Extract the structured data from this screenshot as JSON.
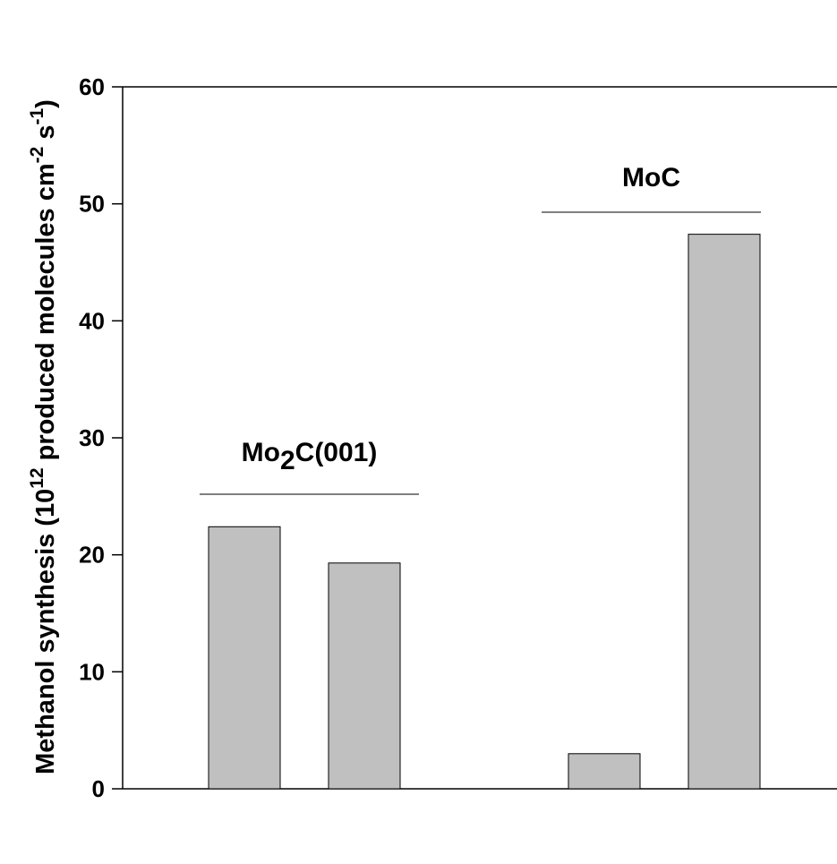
{
  "chart_data": {
    "type": "bar",
    "ylabel": {
      "prefix": "Methanol synthesis (10",
      "exp1": "12",
      "middle": " produced molecules cm",
      "exp2": "-2",
      "middle2": " s",
      "exp3": "-1",
      "suffix": ")"
    },
    "ylim": [
      0,
      60
    ],
    "yticks": [
      "0",
      "10",
      "20",
      "30",
      "40",
      "50",
      "60"
    ],
    "grid": false,
    "groups": [
      {
        "label_main": "Mo",
        "label_sub": "2",
        "label_rest": "C(001)",
        "values": [
          22.4,
          19.3
        ]
      },
      {
        "label_main": "MoC",
        "label_sub": "",
        "label_rest": "",
        "values": [
          3.0,
          47.4
        ]
      }
    ],
    "bar_color": "#c0c0c0"
  }
}
